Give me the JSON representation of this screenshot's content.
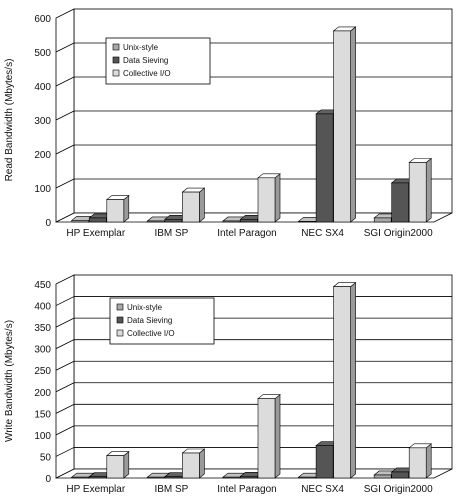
{
  "chart_data": [
    {
      "type": "bar",
      "ylabel": "Read Bandwidth (Mbytes/s)",
      "ylim": [
        0,
        600
      ],
      "yticks": [
        0,
        100,
        200,
        300,
        400,
        500,
        600
      ],
      "categories": [
        "HP Exemplar",
        "IBM SP",
        "Intel Paragon",
        "NEC SX4",
        "SGI Origin2000"
      ],
      "legend_position": "top-left",
      "grid": true,
      "series": [
        {
          "name": "Unix-style",
          "color": "#a8a8a8",
          "values": [
            5,
            3,
            3,
            2,
            12
          ]
        },
        {
          "name": "Data Sieving",
          "color": "#555555",
          "values": [
            12,
            8,
            8,
            318,
            115
          ]
        },
        {
          "name": "Collective I/O",
          "color": "#dcdcdc",
          "values": [
            66,
            88,
            130,
            562,
            175
          ]
        }
      ]
    },
    {
      "type": "bar",
      "ylabel": "Write Bandwidth (Mbytes/s)",
      "ylim": [
        0,
        450
      ],
      "yticks": [
        0,
        50,
        100,
        150,
        200,
        250,
        300,
        350,
        400,
        450
      ],
      "categories": [
        "HP Exemplar",
        "IBM SP",
        "Intel Paragon",
        "NEC SX4",
        "SGI Origin2000"
      ],
      "legend_position": "top-left",
      "grid": true,
      "series": [
        {
          "name": "Unix-style",
          "color": "#a8a8a8",
          "values": [
            2,
            2,
            2,
            2,
            7
          ]
        },
        {
          "name": "Data Sieving",
          "color": "#555555",
          "values": [
            3,
            3,
            4,
            75,
            14
          ]
        },
        {
          "name": "Collective I/O",
          "color": "#dcdcdc",
          "values": [
            52,
            58,
            184,
            444,
            70
          ]
        }
      ]
    }
  ]
}
